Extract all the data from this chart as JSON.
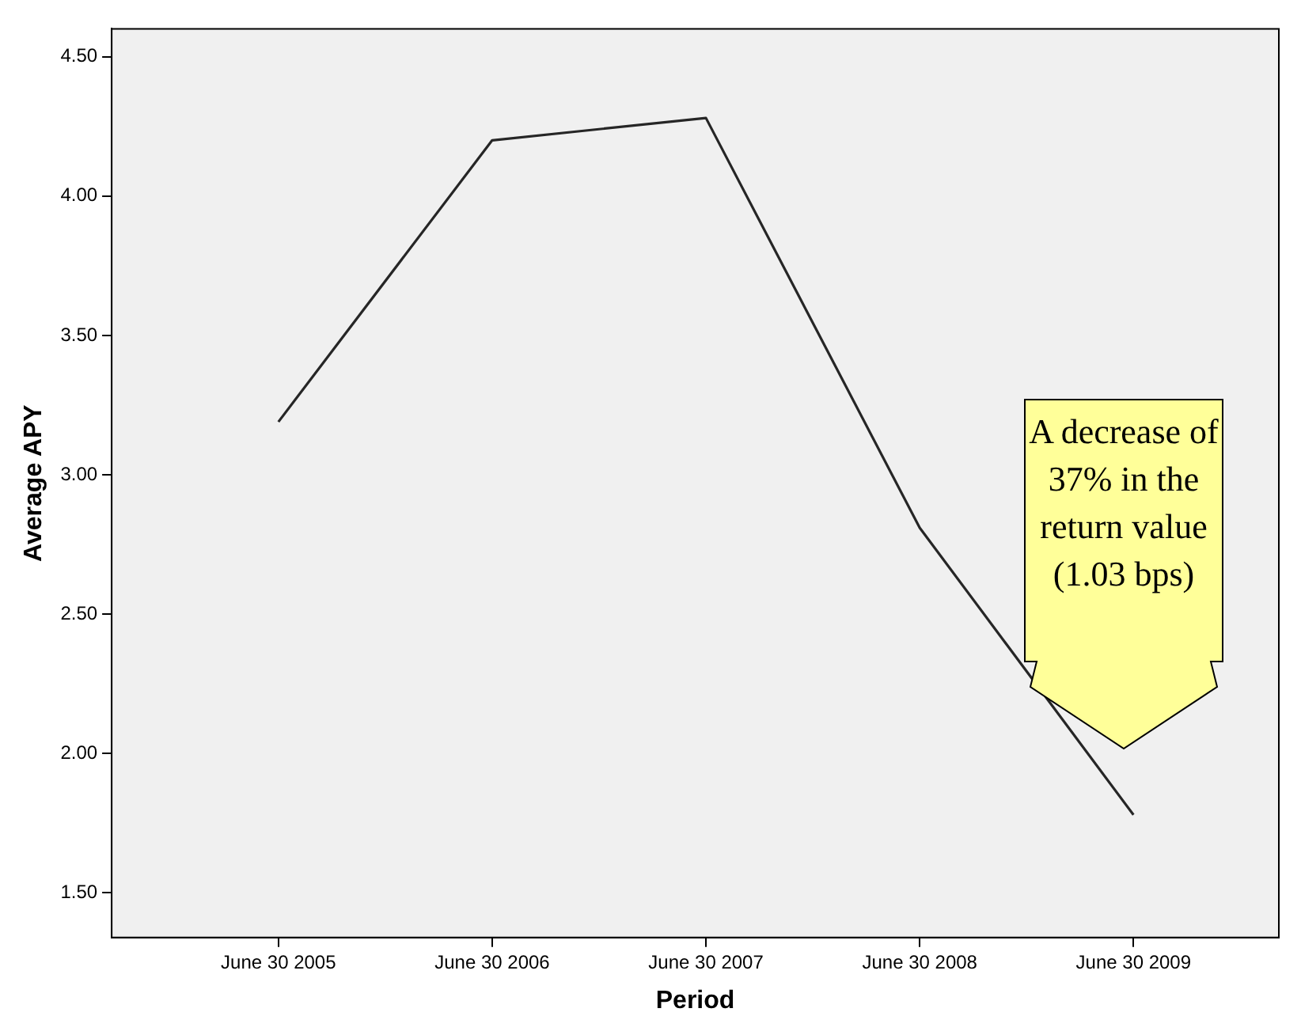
{
  "chart_data": {
    "type": "line",
    "xlabel": "Period",
    "ylabel": "Average APY",
    "categories": [
      "June 30 2005",
      "June 30 2006",
      "June 30 2007",
      "June 30 2008",
      "June 30 2009"
    ],
    "series": [
      {
        "color": "#262626",
        "values": [
          3.19,
          4.2,
          4.28,
          2.81,
          1.78
        ]
      }
    ],
    "ylim": [
      1.34,
      4.6
    ],
    "yticks": [
      {
        "value": 1.5,
        "label": "1.50"
      },
      {
        "value": 2,
        "label": "2.00"
      },
      {
        "value": 2.5,
        "label": "2.50"
      },
      {
        "value": 3,
        "label": "3.00"
      },
      {
        "value": 3.5,
        "label": "3.50"
      },
      {
        "value": 4,
        "label": "4.00"
      },
      {
        "value": 4.5,
        "label": "4.50"
      }
    ],
    "grid": false,
    "legend": false,
    "marker": "none",
    "line_style": "solid",
    "annotations": [
      "A decrease of 37% in the return value (1.03 bps)"
    ]
  }
}
